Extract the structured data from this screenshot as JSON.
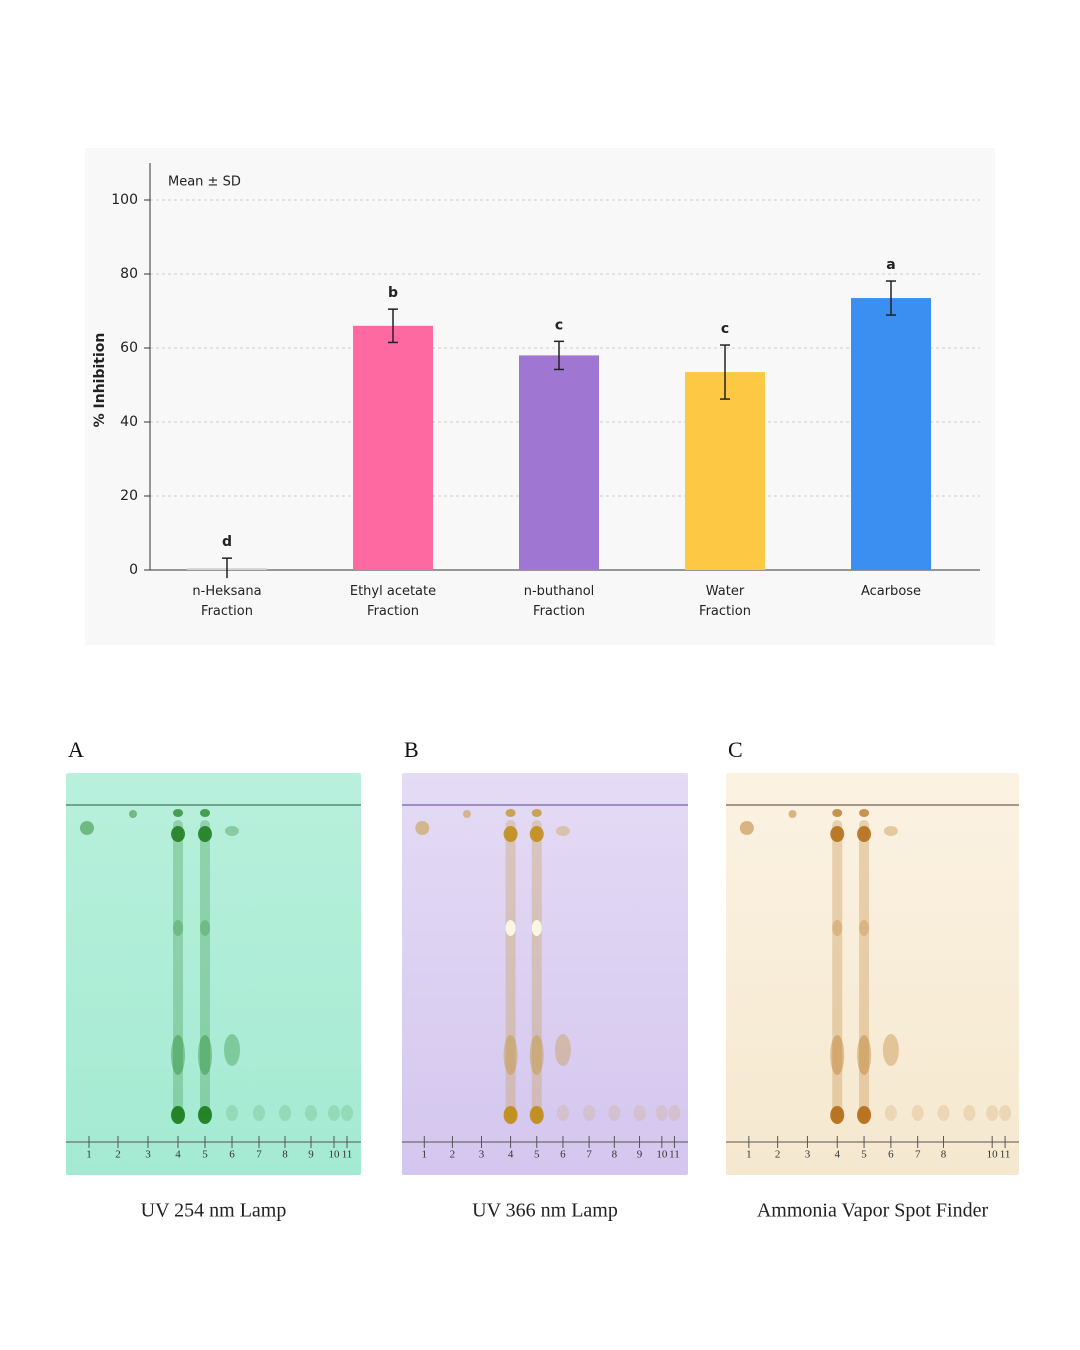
{
  "chart_data": {
    "type": "bar",
    "annotation": "Mean ± SD",
    "y_label": "% Inhibition",
    "categories": [
      "n-Heksana\nFraction",
      "Ethyl acetate\nFraction",
      "n-buthanol\nFraction",
      "Water\nFraction",
      "Acarbose"
    ],
    "values": [
      0.5,
      66,
      58,
      53.5,
      73.5
    ],
    "errors": [
      2.7,
      4.5,
      3.8,
      7.3,
      4.6
    ],
    "significance_labels": [
      "d",
      "b",
      "c",
      "c",
      "a"
    ],
    "colors": [
      "#d2d2d2",
      "#ff69a2",
      "#9f76d2",
      "#fdc944",
      "#3b8ff0"
    ],
    "ylim": [
      0,
      110
    ],
    "yticks": [
      0,
      20,
      40,
      60,
      80,
      100
    ],
    "grid": true
  },
  "tlc_panels": [
    {
      "label": "A",
      "caption": "UV 254 nm Lamp",
      "lanes": [
        1,
        2,
        3,
        4,
        5,
        6,
        7,
        8,
        9,
        10,
        11
      ]
    },
    {
      "label": "B",
      "caption": "UV 366 nm Lamp",
      "lanes": [
        1,
        2,
        3,
        4,
        5,
        6,
        7,
        8,
        9,
        10,
        11
      ]
    },
    {
      "label": "C",
      "caption": "Ammonia Vapor Spot Finder",
      "lanes": [
        1,
        2,
        3,
        4,
        5,
        6,
        7,
        8,
        10,
        11
      ]
    }
  ]
}
